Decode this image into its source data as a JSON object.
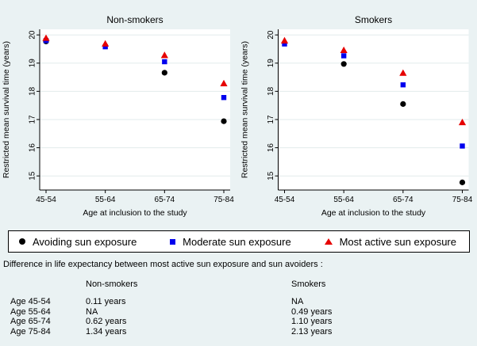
{
  "colors": {
    "background": "#eaf2f3",
    "plot_background": "#ffffff",
    "gridline": "#e2ebec",
    "axis": "#000000",
    "avoiding": "#000000",
    "moderate": "#0000ee",
    "most_active": "#e60000"
  },
  "legend": {
    "items": [
      {
        "label": "Avoiding sun exposure",
        "marker": "circle",
        "color": "#000000"
      },
      {
        "label": "Moderate sun exposure",
        "marker": "square",
        "color": "#0000ee"
      },
      {
        "label": "Most active sun exposure",
        "marker": "triangle",
        "color": "#e60000"
      }
    ]
  },
  "difference_section": {
    "title": "Difference in life expectancy between most active sun exposure and sun avoiders :",
    "col_headers": [
      "Non-smokers",
      "Smokers"
    ],
    "rows": [
      {
        "age": "Age 45-54",
        "non_smokers": "0.11 years",
        "smokers": "NA"
      },
      {
        "age": "Age 55-64",
        "non_smokers": "NA",
        "smokers": "0.49 years"
      },
      {
        "age": "Age 65-74",
        "non_smokers": "0.62 years",
        "smokers": "1.10 years"
      },
      {
        "age": "Age 75-84",
        "non_smokers": "1.34 years",
        "smokers": "2.13 years"
      }
    ]
  },
  "chart_data": [
    {
      "type": "scatter",
      "title": "Non-smokers",
      "xlabel": "Age at inclusion to the study",
      "ylabel": "Restricted mean survival time (years)",
      "categories": [
        "45-54",
        "55-64",
        "65-74",
        "75-84"
      ],
      "yticks": [
        15,
        16,
        17,
        18,
        19,
        20
      ],
      "ylim": [
        14.5,
        20.2
      ],
      "grid": true,
      "legend_position": "bottom-shared",
      "series": [
        {
          "name": "Avoiding sun exposure",
          "marker": "circle",
          "color": "#000000",
          "values": [
            19.77,
            null,
            18.66,
            16.94
          ]
        },
        {
          "name": "Moderate sun exposure",
          "marker": "square",
          "color": "#0000ee",
          "values": [
            19.8,
            19.58,
            19.05,
            17.78
          ]
        },
        {
          "name": "Most active sun exposure",
          "marker": "triangle",
          "color": "#e60000",
          "values": [
            19.89,
            19.69,
            19.28,
            18.28
          ]
        }
      ]
    },
    {
      "type": "scatter",
      "title": "Smokers",
      "xlabel": "Age at inclusion to the study",
      "ylabel": "Restricted mean survival time (years)",
      "categories": [
        "45-54",
        "55-64",
        "65-74",
        "75-84"
      ],
      "yticks": [
        15,
        16,
        17,
        18,
        19,
        20
      ],
      "ylim": [
        14.5,
        20.2
      ],
      "grid": true,
      "legend_position": "bottom-shared",
      "series": [
        {
          "name": "Avoiding sun exposure",
          "marker": "circle",
          "color": "#000000",
          "values": [
            null,
            18.97,
            17.55,
            14.77
          ]
        },
        {
          "name": "Moderate sun exposure",
          "marker": "square",
          "color": "#0000ee",
          "values": [
            19.68,
            19.26,
            18.23,
            16.06
          ]
        },
        {
          "name": "Most active sun exposure",
          "marker": "triangle",
          "color": "#e60000",
          "values": [
            19.8,
            19.46,
            18.65,
            16.9
          ]
        }
      ]
    }
  ]
}
